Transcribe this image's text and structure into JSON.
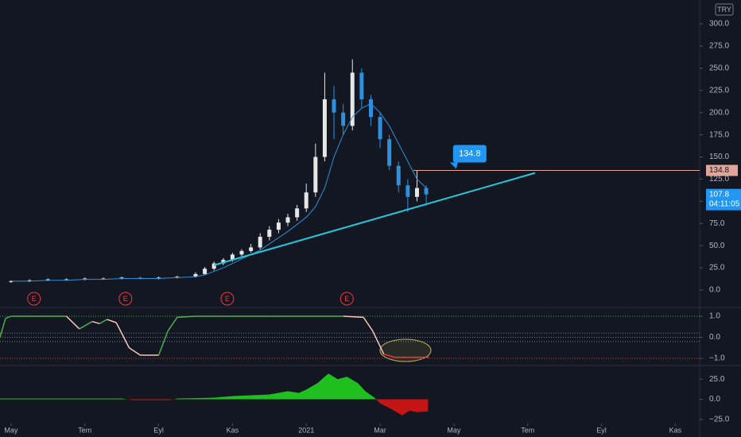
{
  "currency": "TRY",
  "x_axis": {
    "xlim": [
      4.7,
      23.66
    ],
    "xticks": [
      {
        "value": 5,
        "label": "May"
      },
      {
        "value": 7,
        "label": "Tem"
      },
      {
        "value": 9,
        "label": "Eyl"
      },
      {
        "value": 11,
        "label": "Kas"
      },
      {
        "value": 13,
        "label": "2021"
      },
      {
        "value": 15,
        "label": "Mar"
      },
      {
        "value": 17,
        "label": "May"
      },
      {
        "value": 19,
        "label": "Tem"
      },
      {
        "value": 21,
        "label": "Eyl"
      },
      {
        "value": 23,
        "label": "Kas"
      }
    ]
  },
  "chart_data": [
    {
      "type": "candlestick",
      "x": [
        5.0,
        5.5,
        6.0,
        6.5,
        7.0,
        7.5,
        8.0,
        8.5,
        9.0,
        9.5,
        10.0,
        10.25,
        10.5,
        10.75,
        11.0,
        11.25,
        11.5,
        11.75,
        12.0,
        12.25,
        12.5,
        12.75,
        13.0,
        13.25,
        13.5,
        13.75,
        14.0,
        14.25,
        14.5,
        14.75,
        15.0,
        15.25,
        15.5,
        15.75,
        16.0,
        16.25
      ],
      "open": [
        9,
        10,
        11,
        12,
        12,
        13,
        13,
        14,
        13,
        14,
        15,
        18,
        24,
        30,
        34,
        40,
        44,
        48,
        60,
        68,
        76,
        82,
        92,
        110,
        150,
        215,
        200,
        185,
        245,
        215,
        195,
        170,
        140,
        118,
        105,
        115
      ],
      "high": [
        11,
        12,
        13,
        13,
        14,
        14,
        15,
        15,
        15,
        16,
        20,
        26,
        32,
        36,
        42,
        46,
        52,
        64,
        72,
        80,
        86,
        96,
        120,
        165,
        245,
        230,
        210,
        260,
        250,
        220,
        200,
        175,
        145,
        125,
        135,
        118
      ],
      "low": [
        8,
        9,
        10,
        11,
        11,
        12,
        12,
        12,
        12,
        13,
        14,
        17,
        22,
        28,
        32,
        38,
        42,
        46,
        56,
        64,
        72,
        78,
        88,
        105,
        145,
        170,
        175,
        180,
        205,
        185,
        160,
        135,
        110,
        88,
        100,
        95
      ],
      "close": [
        10,
        11,
        12,
        12,
        13,
        13,
        14,
        13,
        14,
        15,
        18,
        24,
        30,
        34,
        40,
        44,
        48,
        60,
        68,
        76,
        82,
        92,
        110,
        150,
        215,
        200,
        185,
        245,
        215,
        195,
        170,
        140,
        118,
        105,
        115,
        107.8
      ],
      "ma": [
        10,
        10,
        11,
        11,
        12,
        12,
        13,
        13,
        13,
        14,
        15,
        17,
        21,
        25,
        30,
        35,
        40,
        45,
        52,
        59,
        66,
        74,
        82,
        94,
        115,
        150,
        175,
        195,
        205,
        210,
        200,
        185,
        165,
        145,
        125,
        115
      ],
      "up_color": "#e6e6e6",
      "down_color": "#2f8fdd",
      "ma_color": "#2f8fdd",
      "ylim": [
        -17.9,
        326.9
      ],
      "yticks": [
        {
          "value": 0,
          "label": "0.0"
        },
        {
          "value": 25,
          "label": "25.0"
        },
        {
          "value": 50,
          "label": "50.0"
        },
        {
          "value": 75,
          "label": "75.0"
        },
        {
          "value": 100,
          "label": "100.0"
        },
        {
          "value": 125,
          "label": "125.0"
        },
        {
          "value": 150,
          "label": "150.0"
        },
        {
          "value": 175,
          "label": "175.0"
        },
        {
          "value": 200,
          "label": "200.0"
        },
        {
          "value": 225,
          "label": "225.0"
        },
        {
          "value": 250,
          "label": "250.0"
        },
        {
          "value": 275,
          "label": "275.0"
        },
        {
          "value": 300,
          "label": "300.0"
        }
      ],
      "trendline": {
        "x": [
          10.5,
          19.2
        ],
        "y": [
          28,
          132
        ],
        "color": "#26c6da"
      },
      "annotation": {
        "level": 134.8,
        "x": 15.9,
        "color": "#e3a49a"
      },
      "countdown": "04:11:05",
      "earnings": {
        "label": "E",
        "x": [
          5.62,
          8.1,
          10.86,
          14.1
        ],
        "color": "#f23645"
      }
    },
    {
      "type": "oscillator",
      "x": [
        4.7,
        4.85,
        5.0,
        6.5,
        6.85,
        7.2,
        7.4,
        7.6,
        7.85,
        8.2,
        8.5,
        9.0,
        9.25,
        9.5,
        10.0,
        12.0,
        14.0,
        14.55,
        14.8,
        15.1,
        15.4,
        16.33
      ],
      "values": [
        0.0,
        0.9,
        1.0,
        1.0,
        0.4,
        0.75,
        0.65,
        0.85,
        0.7,
        -0.5,
        -0.85,
        -0.85,
        0.3,
        0.95,
        1.0,
        1.0,
        1.0,
        0.95,
        0.3,
        -0.8,
        -0.95,
        -0.95
      ],
      "colors": [
        "#4caf50",
        "#4caf50",
        "#4caf50",
        "#4caf50",
        "#f5c6c0",
        "#4caf50",
        "#f5c6c0",
        "#4caf50",
        "#f5c6c0",
        "#f5c6c0",
        "#f5c6c0",
        "#f5c6c0",
        "#4caf50",
        "#4caf50",
        "#4caf50",
        "#4caf50",
        "#4caf50",
        "#f5c6c0",
        "#f5c6c0",
        "#f5c6c0",
        "#e53935",
        "#e53935"
      ],
      "levels": [
        1,
        0.2,
        0,
        -0.2,
        -1
      ],
      "level_colors": [
        "#4caf50",
        "#787b86",
        "#787b86",
        "#787b86",
        "#e53935"
      ],
      "ylim": [
        -1.34,
        1.38
      ],
      "yticks": [
        {
          "value": 1,
          "label": "1.0"
        },
        {
          "value": 0,
          "label": "0.0"
        },
        {
          "value": -1,
          "label": "−1.0"
        }
      ]
    },
    {
      "type": "area",
      "x": [
        4.7,
        8.0,
        8.3,
        9.3,
        9.5,
        10.5,
        11.0,
        12.0,
        12.5,
        12.8,
        13.0,
        13.3,
        13.6,
        13.85,
        14.1,
        14.4,
        14.6,
        14.85,
        15.0,
        15.3,
        15.6,
        15.8,
        16.0,
        16.3
      ],
      "values": [
        1,
        1,
        -1,
        -1,
        1,
        2,
        4,
        6,
        10,
        8,
        12,
        20,
        32,
        25,
        28,
        20,
        10,
        2,
        -5,
        -12,
        -20,
        -14,
        -16,
        -15
      ],
      "pos_color": "#1fbf1f",
      "neg_color": "#c41414",
      "ylim": [
        -32,
        41
      ],
      "yticks": [
        {
          "value": 25,
          "label": "25.0"
        },
        {
          "value": 0,
          "label": "0.0"
        },
        {
          "value": -25,
          "label": "−25.0"
        }
      ]
    }
  ]
}
